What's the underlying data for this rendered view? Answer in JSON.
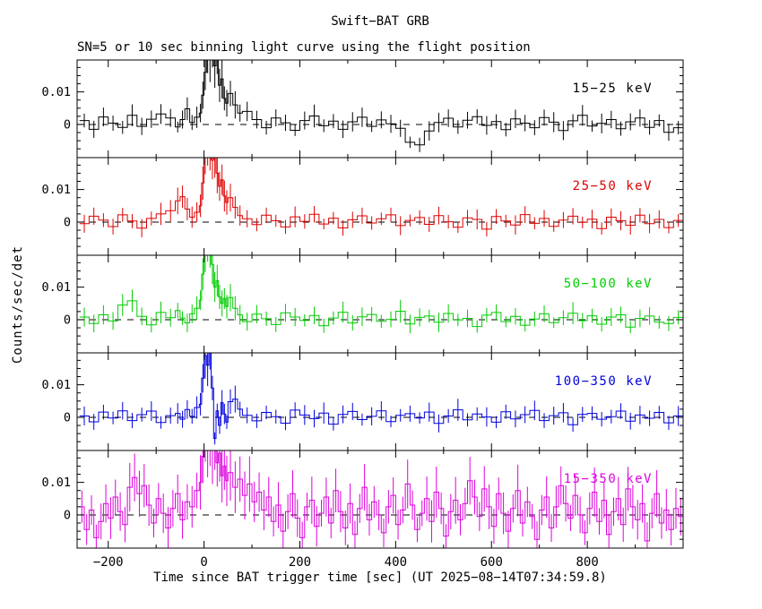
{
  "title": "Swift−BAT GRB",
  "subtitle": "SN=5 or 10 sec binning light curve using the flight position",
  "ylabel": "Counts/sec/det",
  "xlabel": "Time since BAT trigger time [sec] (UT 2025−08−14T07:34:59.8)",
  "chart_data": {
    "type": "line",
    "style": "5 stacked step-histogram light-curve panels with symmetric error bars sharing one time axis",
    "title": "Swift−BAT GRB",
    "xlabel": "Time since BAT trigger time [sec] (UT 2025−08−14T07:34:59.8)",
    "ylabel": "Counts/sec/det",
    "grid": false,
    "zero_line": "dashed",
    "xlim": [
      -265,
      1000
    ],
    "ylim": [
      -0.0102,
      0.0198
    ],
    "x_ticks": [
      -200,
      0,
      200,
      400,
      600,
      800
    ],
    "x_tick_labels": [
      "−200",
      "0",
      "200",
      "400",
      "600",
      "800"
    ],
    "x_minor_ticks": [
      -100,
      100,
      300,
      500,
      700,
      900
    ],
    "y_ticks": [
      0,
      0.01
    ],
    "y_tick_labels": [
      "0",
      "0.01"
    ],
    "y_minor_ticks": [
      -0.0075,
      -0.005,
      -0.0025,
      0.0025,
      0.005,
      0.0075,
      0.0125,
      0.015,
      0.0175
    ],
    "value_scale": 0.001,
    "series": [
      {
        "name": "15−25 keV",
        "color": "#000000",
        "err_base": 2.3,
        "segments": [
          {
            "t0": -260,
            "bin_width": 20,
            "values": [
              1.2,
              -1.5,
              2.3,
              0.4,
              -0.9,
              2.8,
              -0.6,
              1.6,
              3.2,
              2.0
            ]
          },
          {
            "t0": -60,
            "bin_width": 10,
            "values": [
              -0.8,
              1.5,
              4.8,
              0.6,
              2.2
            ]
          },
          {
            "t0": -10,
            "bin_width": 5,
            "values": [
              3.5,
              9.0,
              16.0,
              24.0,
              20.0,
              26.0,
              18.0,
              22.0,
              12.0,
              14.0,
              8.0,
              6.5
            ]
          },
          {
            "t0": 50,
            "bin_width": 10,
            "values": [
              9.5,
              6.0,
              3.5
            ]
          },
          {
            "t0": 80,
            "bin_width": 20,
            "values": [
              4.0,
              1.5,
              -1.0,
              2.0,
              0.5,
              -1.8,
              1.2,
              2.6,
              -0.4,
              1.0,
              -1.5,
              0.8,
              2.2,
              -0.6,
              1.4,
              0.2,
              -1.2,
              -5.5,
              -6.3,
              -2.0,
              0.6,
              1.9,
              -0.8,
              1.3,
              2.4,
              -0.3,
              0.9,
              -1.6,
              1.7,
              0.4,
              -1.0,
              2.1,
              0.7,
              -1.9,
              1.1,
              2.8,
              -0.5,
              0.3,
              1.5,
              -1.3,
              0.8,
              2.0,
              -0.9,
              1.2,
              -2.4,
              -1.0
            ]
          }
        ]
      },
      {
        "name": "25−50 keV",
        "color": "#dd0000",
        "err_base": 2.3,
        "segments": [
          {
            "t0": -260,
            "bin_width": 20,
            "values": [
              -0.5,
              1.8,
              0.6,
              -1.4,
              2.2,
              0.3,
              -1.9,
              1.1,
              2.5,
              3.5
            ]
          },
          {
            "t0": -60,
            "bin_width": 10,
            "values": [
              6.5,
              7.8,
              4.0,
              1.5,
              3.0
            ]
          },
          {
            "t0": -10,
            "bin_width": 5,
            "values": [
              5.0,
              12.0,
              22.0,
              26.0,
              24.0,
              19.0,
              21.0,
              15.0,
              11.0,
              13.0,
              8.0,
              6.0
            ]
          },
          {
            "t0": 50,
            "bin_width": 10,
            "values": [
              7.5,
              4.5,
              2.0
            ]
          },
          {
            "t0": 80,
            "bin_width": 20,
            "values": [
              1.0,
              -0.8,
              2.1,
              0.4,
              -1.5,
              1.6,
              0.2,
              2.4,
              -0.6,
              1.2,
              -1.8,
              0.7,
              1.9,
              -0.3,
              1.0,
              2.2,
              -1.1,
              0.5,
              1.4,
              -0.7,
              2.0,
              0.1,
              -1.6,
              1.3,
              0.8,
              -2.2,
              1.7,
              0.3,
              -0.9,
              2.3,
              -0.4,
              1.1,
              -1.3,
              0.6,
              1.8,
              -0.1,
              0.9,
              -2.0,
              1.5,
              0.4,
              -1.0,
              2.1,
              -0.5,
              0.8,
              -1.7,
              0.5
            ]
          }
        ]
      },
      {
        "name": "50−100 keV",
        "color": "#00cc00",
        "err_base": 2.3,
        "segments": [
          {
            "t0": -260,
            "bin_width": 20,
            "values": [
              0.8,
              -1.2,
              1.5,
              -0.4,
              4.5,
              5.8,
              1.0,
              -1.6,
              2.2,
              0.6
            ]
          },
          {
            "t0": -60,
            "bin_width": 10,
            "values": [
              2.8,
              0.5,
              -1.0,
              1.8,
              3.5
            ]
          },
          {
            "t0": -10,
            "bin_width": 5,
            "values": [
              6.0,
              14.0,
              21.0,
              25.0,
              23.0,
              17.0,
              10.0,
              12.0,
              7.0,
              5.0,
              6.5,
              4.0
            ]
          },
          {
            "t0": 50,
            "bin_width": 10,
            "values": [
              6.8,
              3.5,
              1.5
            ]
          },
          {
            "t0": 80,
            "bin_width": 20,
            "values": [
              -0.6,
              1.7,
              0.3,
              -1.5,
              2.1,
              0.8,
              -0.2,
              1.3,
              -1.9,
              0.5,
              2.3,
              -1.0,
              0.9,
              1.6,
              -0.5,
              0.1,
              2.6,
              -1.3,
              0.7,
              1.1,
              -0.8,
              1.9,
              -0.1,
              0.4,
              -2.1,
              1.4,
              2.2,
              -0.6,
              1.0,
              -1.7,
              0.2,
              1.8,
              -0.9,
              0.6,
              2.0,
              -0.3,
              1.2,
              -1.4,
              0.8,
              1.5,
              -2.3,
              0.4,
              1.1,
              -0.8,
              -1.2,
              0.7
            ]
          }
        ]
      },
      {
        "name": "100−350 keV",
        "color": "#0000dd",
        "err_base": 2.3,
        "segments": [
          {
            "t0": -260,
            "bin_width": 20,
            "values": [
              0.4,
              -1.4,
              1.6,
              -0.2,
              2.0,
              -1.0,
              0.8,
              1.9,
              -1.6,
              0.5
            ]
          },
          {
            "t0": -60,
            "bin_width": 10,
            "values": [
              1.2,
              -0.6,
              2.4,
              0.3,
              3.0
            ]
          },
          {
            "t0": -10,
            "bin_width": 5,
            "values": [
              4.0,
              12.0,
              19.0,
              16.0,
              22.0,
              9.0,
              -6.5,
              2.0,
              -2.5,
              4.5,
              1.0,
              -1.5
            ]
          },
          {
            "t0": 50,
            "bin_width": 10,
            "values": [
              4.8,
              5.6,
              2.5
            ]
          },
          {
            "t0": 80,
            "bin_width": 20,
            "values": [
              0.6,
              -1.1,
              1.5,
              0.2,
              -1.8,
              2.2,
              0.7,
              -0.4,
              1.3,
              -2.1,
              0.9,
              1.8,
              -0.7,
              0.3,
              2.0,
              -1.3,
              0.6,
              1.1,
              -0.2,
              1.6,
              -1.9,
              0.4,
              2.3,
              -0.8,
              1.0,
              0.1,
              -1.5,
              1.7,
              -0.5,
              0.8,
              2.1,
              -1.0,
              0.5,
              1.4,
              -2.3,
              0.9,
              1.2,
              -0.6,
              0.2,
              1.9,
              -1.2,
              0.7,
              -0.3,
              1.5,
              -1.7,
              0.4
            ]
          }
        ]
      },
      {
        "name": "15−350 keV",
        "color": "#dd00dd",
        "err_base": 5.0,
        "segments": [
          {
            "t0": -260,
            "bin_width": 10,
            "values": [
              2.5,
              -4.5,
              1.5,
              -7.0,
              -2.0,
              3.5,
              -1.0,
              5.5,
              1.0,
              -3.0,
              8.5,
              11.5,
              6.5,
              9.0,
              3.0,
              -2.5,
              5.0,
              0.5,
              -4.0,
              2.0
            ]
          },
          {
            "t0": -60,
            "bin_width": 10,
            "values": [
              6.5,
              -1.5,
              4.0,
              2.5,
              7.5
            ]
          },
          {
            "t0": -10,
            "bin_width": 5,
            "values": [
              10.0,
              18.0,
              26.0,
              23.0,
              27.0,
              20.0,
              24.0,
              16.0,
              19.0,
              12.0,
              15.0,
              10.5
            ]
          },
          {
            "t0": 50,
            "bin_width": 10,
            "values": [
              13.0,
              8.5,
              11.0
            ]
          },
          {
            "t0": 80,
            "bin_width": 10,
            "values": [
              6.0,
              9.5,
              4.0,
              7.0,
              1.5,
              5.5,
              -2.0,
              3.0,
              -5.0,
              1.0,
              6.5,
              -1.0,
              -7.0,
              2.5,
              4.5,
              -3.5,
              0.5,
              5.5,
              -2.5,
              7.5,
              1.0,
              -4.0,
              3.5,
              -6.0,
              2.0,
              8.5,
              -1.5,
              4.0,
              0.0,
              -5.5,
              2.5,
              6.0,
              -3.0,
              1.5,
              9.5,
              3.0,
              -4.5,
              0.5,
              5.0,
              -2.0,
              7.0,
              2.0,
              -6.5,
              1.0,
              4.5,
              -1.5,
              3.5,
              10.5,
              5.5,
              -0.5,
              8.0,
              2.5,
              -3.5,
              6.5,
              0.5,
              -5.0,
              2.0,
              7.5,
              -2.5,
              4.0,
              -0.5,
              -7.5,
              1.5,
              5.5,
              -4.0,
              2.5,
              9.0,
              3.5,
              -1.0,
              6.0,
              0.0,
              -5.5,
              2.0,
              7.0,
              -2.0,
              4.5,
              -6.0,
              1.0,
              5.0,
              -3.0,
              8.0,
              2.5,
              -1.5,
              3.5,
              -8.0,
              0.5,
              6.5,
              -2.5,
              1.5,
              -4.5,
              2.0,
              -0.5
            ]
          }
        ]
      }
    ]
  }
}
